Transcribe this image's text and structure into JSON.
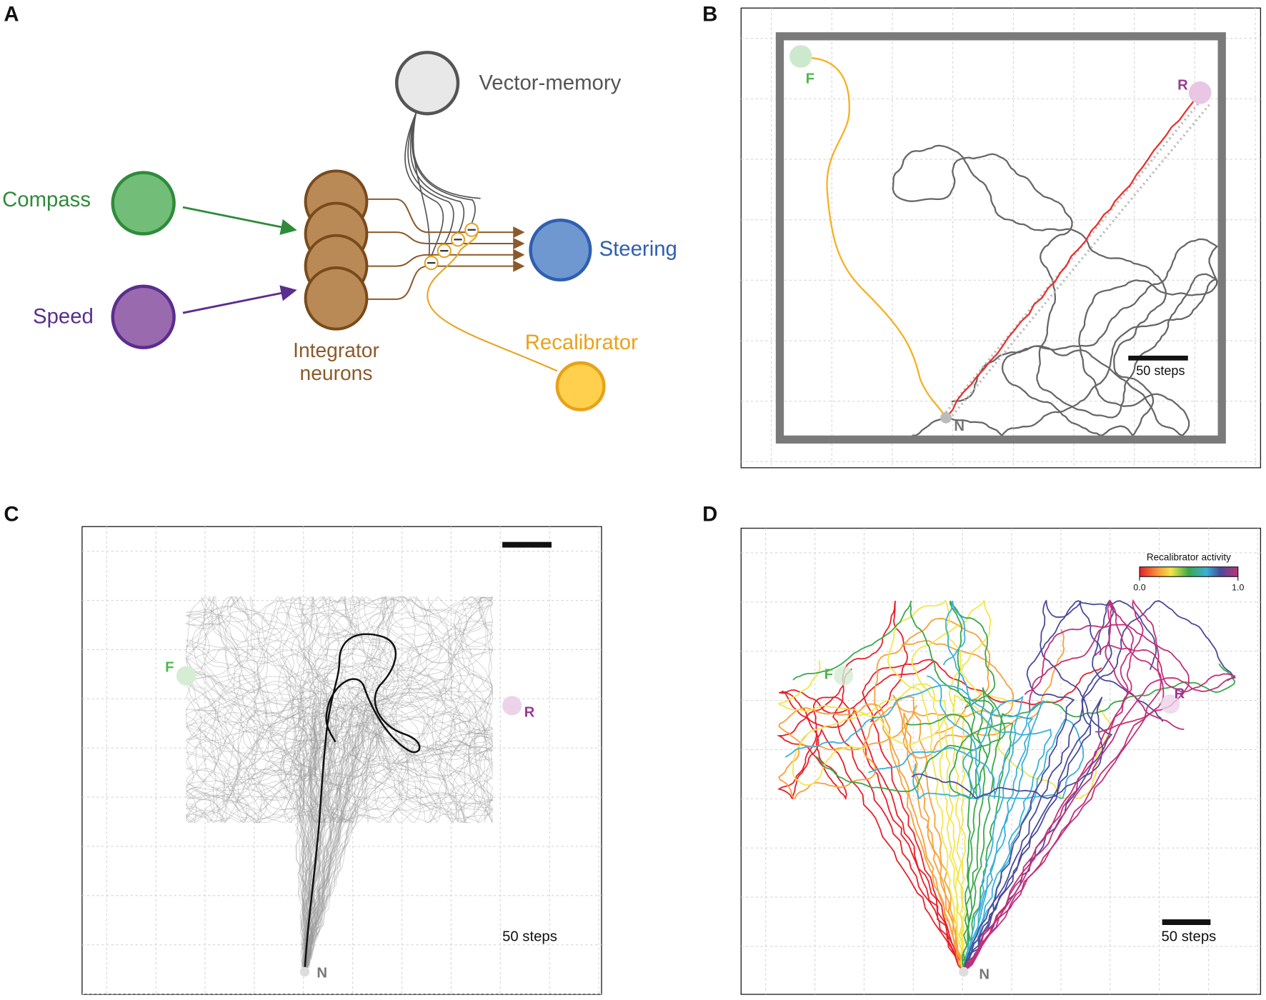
{
  "panels": {
    "a": {
      "label": "A",
      "nodes": {
        "vector_memory": "Vector-memory",
        "compass": "Compass",
        "speed": "Speed",
        "integrator_line1": "Integrator",
        "integrator_line2": "neurons",
        "steering": "Steering",
        "recalibrator": "Recalibrator"
      },
      "colors": {
        "compass": "#2e8b3a",
        "speed": "#5b2d8e",
        "integrator": "#8b5a2b",
        "steering": "#2f5fb0",
        "recalibrator": "#e8a21a",
        "memory": "#555555"
      }
    },
    "b": {
      "label": "B",
      "scale_bar": "50 steps",
      "markers": {
        "feeder": "F",
        "reward": "R",
        "nest": "N"
      }
    },
    "c": {
      "label": "C",
      "scale_bar": "50 steps",
      "markers": {
        "feeder": "F",
        "reward": "R",
        "nest": "N"
      }
    },
    "d": {
      "label": "D",
      "scale_bar": "50 steps",
      "markers": {
        "feeder": "F",
        "reward": "R",
        "nest": "N"
      },
      "colorbar": {
        "title": "Recalibrator activity",
        "min_label": "0.0",
        "max_label": "1.0",
        "colors": [
          "#e8202a",
          "#f7a13a",
          "#f2e64a",
          "#39a84a",
          "#3ab0d8",
          "#4a4a9a",
          "#c0307a"
        ]
      }
    }
  }
}
